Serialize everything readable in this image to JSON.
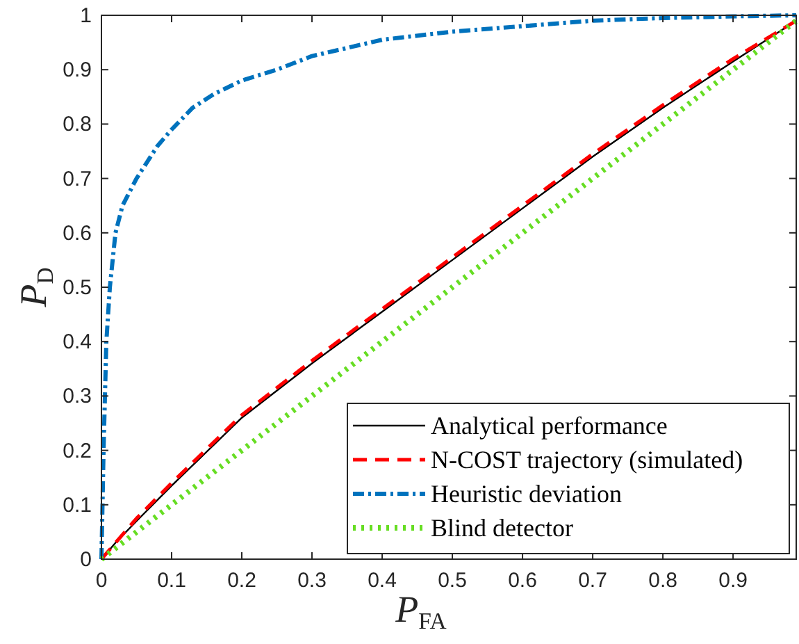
{
  "chart_data": {
    "type": "line",
    "xlabel": "P$_{FA}$",
    "ylabel": "P$_{D}$",
    "xlim": [
      0,
      0.99
    ],
    "ylim": [
      0,
      1
    ],
    "xticks": [
      0,
      0.1,
      0.2,
      0.3,
      0.4,
      0.5,
      0.6,
      0.7,
      0.8,
      0.9
    ],
    "yticks": [
      0,
      0.1,
      0.2,
      0.3,
      0.4,
      0.5,
      0.6,
      0.7,
      0.8,
      0.9,
      1
    ],
    "grid": false,
    "legend": "bottom right",
    "series": [
      {
        "name": "Analytical performance",
        "color": "#000000",
        "line_style": "solid",
        "x": [
          0,
          0.02,
          0.05,
          0.1,
          0.2,
          0.3,
          0.4,
          0.5,
          0.6,
          0.7,
          0.8,
          0.9,
          0.99
        ],
        "values": [
          0,
          0.03,
          0.07,
          0.135,
          0.26,
          0.36,
          0.455,
          0.55,
          0.645,
          0.74,
          0.83,
          0.915,
          0.99
        ]
      },
      {
        "name": "N-COST trajectory (simulated)",
        "color": "#ff0000",
        "line_style": "dashed",
        "x": [
          0,
          0.02,
          0.05,
          0.1,
          0.2,
          0.3,
          0.4,
          0.5,
          0.6,
          0.7,
          0.8,
          0.9,
          0.99
        ],
        "values": [
          0,
          0.03,
          0.075,
          0.14,
          0.265,
          0.365,
          0.46,
          0.555,
          0.65,
          0.745,
          0.835,
          0.92,
          0.99
        ]
      },
      {
        "name": "Heuristic deviation",
        "color": "#0072bd",
        "line_style": "dashdot",
        "x": [
          0,
          0.003,
          0.007,
          0.012,
          0.02,
          0.03,
          0.05,
          0.08,
          0.1,
          0.13,
          0.16,
          0.2,
          0.25,
          0.3,
          0.35,
          0.4,
          0.5,
          0.6,
          0.7,
          0.8,
          0.9,
          0.99
        ],
        "values": [
          0,
          0.2,
          0.4,
          0.5,
          0.6,
          0.65,
          0.7,
          0.76,
          0.79,
          0.83,
          0.855,
          0.88,
          0.9,
          0.925,
          0.94,
          0.955,
          0.97,
          0.98,
          0.99,
          0.995,
          0.998,
          1
        ]
      },
      {
        "name": "Blind detector",
        "color": "#66dd22",
        "line_style": "dotted",
        "x": [
          0,
          0.99
        ],
        "values": [
          0,
          0.99
        ]
      }
    ]
  }
}
